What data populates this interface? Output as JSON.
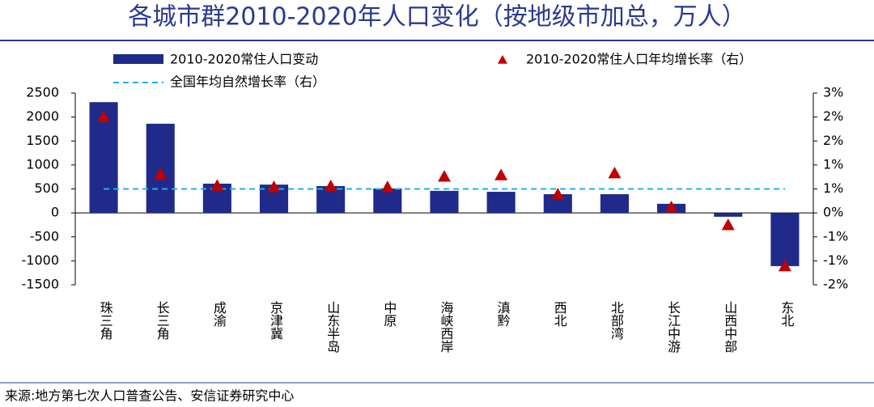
{
  "chart_data": {
    "type": "bar",
    "title": "各城市群2010-2020年人口变化（按地级市加总，万人）",
    "source": "来源:地方第七次人口普查公告、安信证券研究中心",
    "categories": [
      "珠三角",
      "长三角",
      "成渝",
      "京津冀",
      "山东半岛",
      "中原",
      "海峡西岸",
      "滇黔",
      "西北",
      "北部湾",
      "长江中游",
      "山西中部",
      "东北"
    ],
    "series": [
      {
        "name": "2010-2020常住人口变动",
        "color": "#1f2a8a",
        "values": [
          2310,
          1860,
          610,
          590,
          560,
          510,
          460,
          440,
          390,
          390,
          190,
          -80,
          -1110
        ]
      },
      {
        "name": "2010-2020常住人口年均增长率（右）",
        "color": "#c00000",
        "axis": "y2",
        "values": [
          2.0,
          0.81,
          0.57,
          0.54,
          0.56,
          0.54,
          0.76,
          0.79,
          0.39,
          0.83,
          0.12,
          -0.25,
          -1.11
        ]
      }
    ],
    "reference_line": {
      "name": "全国年均自然增长率（右）",
      "color": "#1fb0ea",
      "axis": "y2",
      "value": 0.5
    },
    "ylim": [
      -1500,
      2500
    ],
    "yticks": [
      2500,
      2000,
      1500,
      1000,
      500,
      0,
      -500,
      -1000,
      -1500
    ],
    "y2lim": [
      -1.5,
      2.5
    ],
    "y2ticks": [
      {
        "value": 2.5,
        "label": "3%"
      },
      {
        "value": 2.0,
        "label": "2%"
      },
      {
        "value": 1.5,
        "label": "2%"
      },
      {
        "value": 1.0,
        "label": "1%"
      },
      {
        "value": 0.5,
        "label": "1%"
      },
      {
        "value": 0,
        "label": "0%"
      },
      {
        "value": -0.5,
        "label": "-1%"
      },
      {
        "value": -1.0,
        "label": "-1%"
      },
      {
        "value": -1.5,
        "label": "-2%"
      }
    ]
  }
}
